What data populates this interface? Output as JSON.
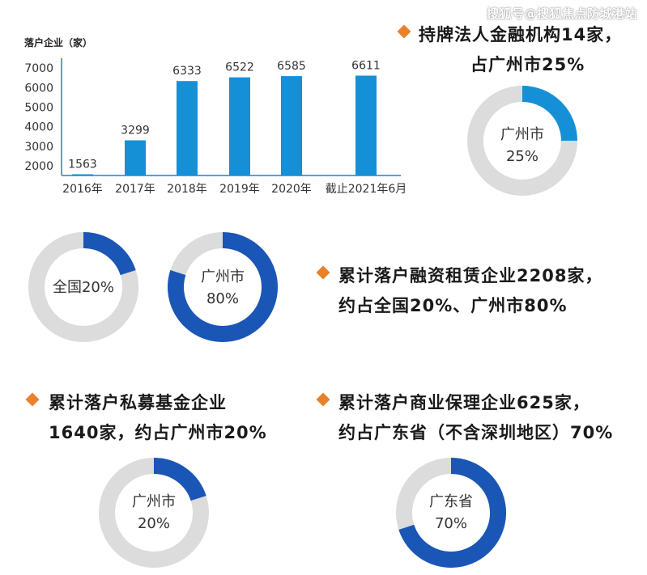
{
  "watermark": "搜狐号@搜狐焦点防城港站",
  "bar_chart_title": "落户企业（家）",
  "chart_data": [
    {
      "type": "bar",
      "title": "落户企业（家）",
      "categories": [
        "2016年",
        "2017年",
        "2018年",
        "2019年",
        "2020年",
        "截止2021年6月"
      ],
      "values": [
        1563,
        3299,
        6333,
        6522,
        6585,
        6611
      ],
      "y_ticks": [
        "2000",
        "3000",
        "4000",
        "5000",
        "6000",
        "7000"
      ],
      "ylim": [
        1500,
        7500
      ],
      "grid": false,
      "bar_color": "#1590d6"
    },
    {
      "type": "pie",
      "variant": "donut",
      "label_line1": "广州市",
      "label_line2": "25%",
      "value": 25,
      "fill_color": "#1590d6"
    },
    {
      "type": "pie",
      "variant": "donut",
      "label_line1": "全国20%",
      "value": 20,
      "fill_color": "#1a56b5"
    },
    {
      "type": "pie",
      "variant": "donut",
      "label_line1": "广州市",
      "label_line2": "80%",
      "value": 80,
      "fill_color": "#1a56b5"
    },
    {
      "type": "pie",
      "variant": "donut",
      "label_line1": "广州市",
      "label_line2": "20%",
      "value": 20,
      "fill_color": "#1a56b5"
    },
    {
      "type": "pie",
      "variant": "donut",
      "label_line1": "广东省",
      "label_line2": "70%",
      "value": 70,
      "fill_color": "#1a56b5"
    }
  ],
  "headlines": {
    "finance_line1": "持牌法人金融机构14家，",
    "finance_line2": "占广州市25%",
    "leasing_line1": "累计落户融资租赁企业2208家，",
    "leasing_line2": "约占全国20%、广州市80%",
    "fund_line1": "累计落户私募基金企业",
    "fund_line2": "1640家，约占广州市20%",
    "factoring_line1": "累计落户商业保理企业625家，",
    "factoring_line2": "约占广东省（不含深圳地区）70%"
  },
  "colors": {
    "accent_orange": "#e8822a",
    "track_gray": "#dcdcdc",
    "light_blue": "#1590d6",
    "dark_blue": "#1a56b5"
  }
}
